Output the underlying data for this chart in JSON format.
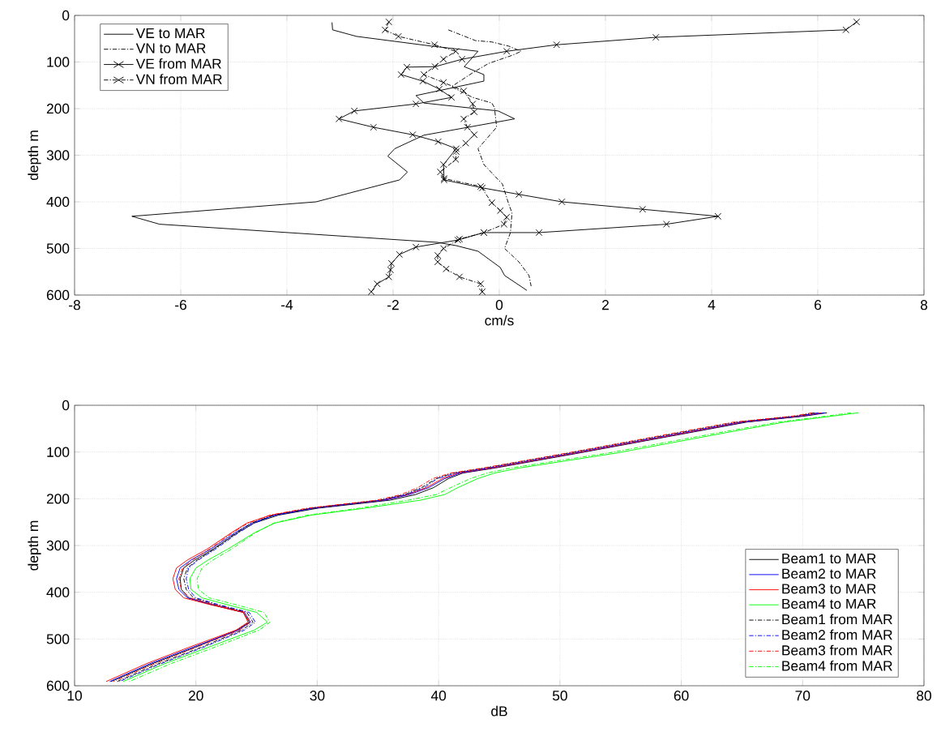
{
  "chart_data": [
    {
      "type": "line",
      "xlabel": "cm/s",
      "ylabel": "depth m",
      "xlim": [
        -8,
        8
      ],
      "ylim": [
        600,
        0
      ],
      "xticks": [
        -8,
        -6,
        -4,
        -2,
        0,
        2,
        4,
        6,
        8
      ],
      "yticks": [
        0,
        100,
        200,
        300,
        400,
        500,
        600
      ],
      "grid": true,
      "legend": "top left",
      "series": [
        {
          "name": "VE to MAR",
          "color": "#000000",
          "line_style": "solid",
          "marker": "none",
          "x": [
            -3.15,
            -3.14,
            -2.69,
            -1.27,
            -0.4,
            -0.66,
            -0.29,
            -0.29,
            -1.57,
            -1.42,
            -0.02,
            0.29,
            -1.42,
            -1.97,
            -2.1,
            -1.73,
            -1.88,
            -3.45,
            -6.92,
            -6.4,
            -1.16,
            -0.81,
            -0.4,
            0.02,
            0.1,
            0.52
          ],
          "values": [
            15,
            31,
            45,
            66,
            77,
            110,
            127,
            141,
            172,
            188,
            205,
            222,
            257,
            286,
            302,
            336,
            353,
            400,
            431,
            448,
            487,
            494,
            506,
            541,
            558,
            590
          ]
        },
        {
          "name": "VN to MAR",
          "color": "#000000",
          "line_style": "dashdot",
          "marker": "none",
          "x": [
            -0.96,
            -0.45,
            -0.14,
            0.18,
            0.41,
            0.26,
            -0.2,
            -0.5,
            -0.9,
            -0.5,
            -0.14,
            -0.09,
            -0.05,
            -0.4,
            -0.29,
            0.06,
            0.17,
            0.24,
            0.21,
            0.1,
            0.37,
            0.56,
            0.6
          ],
          "values": [
            31,
            54,
            57,
            66,
            77,
            85,
            103,
            123,
            153,
            176,
            188,
            198,
            240,
            286,
            320,
            362,
            402,
            424,
            466,
            500,
            529,
            558,
            581
          ]
        },
        {
          "name": "VE from MAR",
          "color": "#000000",
          "line_style": "solid",
          "marker": "cross",
          "x": [
            6.73,
            6.53,
            2.95,
            1.08,
            0.14,
            -0.7,
            -1.21,
            -1.74,
            -1.85,
            -1.44,
            -1.13,
            -0.9,
            -1.57,
            -2.73,
            -3.02,
            -2.37,
            -1.63,
            -1.15,
            -0.81,
            -1.05,
            -1.04,
            -0.32,
            0.37,
            1.18,
            2.7,
            4.12,
            3.15,
            0.75,
            -0.29,
            -0.78,
            -1.57,
            -1.88,
            -2.03,
            -2.05,
            -2.08,
            -2.3,
            -2.41
          ],
          "values": [
            14,
            31,
            47,
            63,
            77,
            94,
            110,
            111,
            127,
            141,
            158,
            176,
            190,
            205,
            222,
            240,
            256,
            271,
            286,
            320,
            353,
            370,
            384,
            400,
            416,
            431,
            448,
            466,
            466,
            482,
            497,
            513,
            532,
            546,
            561,
            576,
            593
          ]
        },
        {
          "name": "VN from MAR",
          "color": "#000000",
          "line_style": "dashdot",
          "marker": "cross",
          "x": [
            -2.08,
            -2.15,
            -1.9,
            -1.22,
            -0.82,
            -1.05,
            -1.42,
            -1.05,
            -0.67,
            -0.5,
            -0.47,
            -0.67,
            -0.6,
            -0.47,
            -0.63,
            -0.81,
            -0.82,
            -1.11,
            -1.04,
            -0.35,
            -0.14,
            0.02,
            0.14,
            0.09,
            -0.29,
            -0.75,
            -1.05,
            -1.16,
            -1.16,
            -1.0,
            -0.75,
            -0.35,
            -0.32
          ],
          "values": [
            14,
            31,
            45,
            63,
            77,
            94,
            127,
            144,
            162,
            190,
            207,
            222,
            240,
            256,
            274,
            292,
            309,
            336,
            350,
            367,
            402,
            419,
            433,
            448,
            466,
            480,
            500,
            515,
            529,
            544,
            561,
            576,
            593
          ]
        }
      ]
    },
    {
      "type": "line",
      "xlabel": "dB",
      "ylabel": "depth m",
      "xlim": [
        10,
        80
      ],
      "ylim": [
        600,
        0
      ],
      "xticks": [
        10,
        20,
        30,
        40,
        50,
        60,
        70,
        80
      ],
      "yticks": [
        0,
        100,
        200,
        300,
        400,
        500,
        600
      ],
      "grid": true,
      "legend": "bottom right",
      "series": [
        {
          "name": "Beam1 to MAR",
          "color": "#000000",
          "line_style": "solid",
          "x": [
            72.0,
            70.2,
            65.4,
            60.6,
            51.6,
            44.7,
            42.0,
            40.8,
            39.6,
            38.1,
            36.0,
            30.1,
            26.8,
            24.8,
            23.4,
            21.4,
            19.9,
            19.0,
            18.7,
            18.8,
            19.4,
            21.2,
            23.9,
            24.4,
            23.4,
            19.9,
            16.4,
            13.0
          ],
          "values": [
            16,
            23,
            36,
            59,
            102,
            134,
            145,
            157,
            176,
            191,
            203,
            220,
            235,
            252,
            273,
            308,
            331,
            348,
            371,
            394,
            412,
            426,
            443,
            464,
            481,
            518,
            553,
            591
          ]
        },
        {
          "name": "Beam2 to MAR",
          "color": "#0000ff",
          "line_style": "solid",
          "x": [
            71.8,
            70.0,
            65.2,
            60.4,
            51.4,
            44.5,
            41.8,
            40.5,
            39.2,
            37.6,
            35.6,
            29.8,
            26.5,
            24.6,
            23.2,
            21.2,
            19.6,
            18.7,
            18.4,
            18.6,
            19.3,
            21.3,
            24.0,
            24.5,
            23.5,
            19.7,
            16.2,
            12.9
          ],
          "values": [
            16,
            23,
            36,
            59,
            102,
            134,
            145,
            157,
            176,
            191,
            203,
            220,
            235,
            252,
            273,
            308,
            331,
            348,
            371,
            394,
            412,
            426,
            443,
            464,
            481,
            518,
            553,
            591
          ]
        },
        {
          "name": "Beam3 to MAR",
          "color": "#ff0000",
          "line_style": "solid",
          "x": [
            71.5,
            69.8,
            65.0,
            60.3,
            51.3,
            44.4,
            41.6,
            40.3,
            39.0,
            37.4,
            35.4,
            29.6,
            26.2,
            24.2,
            22.9,
            20.9,
            19.3,
            18.4,
            18.1,
            18.3,
            19.0,
            21.1,
            23.9,
            24.3,
            23.3,
            19.4,
            15.9,
            12.6
          ],
          "values": [
            16,
            23,
            36,
            59,
            102,
            134,
            145,
            157,
            176,
            191,
            203,
            220,
            235,
            252,
            273,
            308,
            331,
            348,
            371,
            394,
            412,
            426,
            443,
            464,
            481,
            518,
            553,
            591
          ]
        },
        {
          "name": "Beam4 to MAR",
          "color": "#00ff00",
          "line_style": "solid",
          "x": [
            74.6,
            72.5,
            68.5,
            63.6,
            54.7,
            46.7,
            44.6,
            43.2,
            41.6,
            40.5,
            38.5,
            34.0,
            29.5,
            26.5,
            24.8,
            22.6,
            21.0,
            20.0,
            19.5,
            19.6,
            20.5,
            22.5,
            25.0,
            25.9,
            24.8,
            21.0,
            17.4,
            14.0
          ],
          "values": [
            16,
            23,
            36,
            59,
            102,
            134,
            145,
            157,
            176,
            191,
            203,
            220,
            235,
            252,
            273,
            308,
            331,
            348,
            371,
            394,
            412,
            426,
            443,
            464,
            481,
            518,
            553,
            591
          ]
        },
        {
          "name": "Beam1 from MAR",
          "color": "#000000",
          "line_style": "dashdot",
          "x": [
            71.0,
            69.5,
            64.6,
            59.8,
            50.8,
            43.9,
            41.2,
            39.8,
            38.6,
            37.2,
            35.2,
            29.5,
            26.4,
            24.6,
            23.3,
            21.5,
            20.1,
            19.3,
            19.0,
            19.2,
            19.8,
            21.6,
            24.2,
            24.7,
            23.8,
            20.4,
            16.9,
            13.5
          ],
          "values": [
            16,
            23,
            36,
            59,
            102,
            134,
            145,
            157,
            176,
            191,
            203,
            220,
            235,
            252,
            273,
            308,
            331,
            348,
            371,
            394,
            412,
            426,
            443,
            464,
            481,
            518,
            553,
            591
          ]
        },
        {
          "name": "Beam2 from MAR",
          "color": "#0000ff",
          "line_style": "dashdot",
          "x": [
            71.3,
            69.6,
            64.8,
            60.0,
            51.0,
            44.1,
            41.4,
            39.9,
            38.8,
            37.3,
            35.3,
            29.6,
            26.5,
            24.8,
            23.5,
            21.6,
            20.2,
            19.4,
            19.2,
            19.4,
            20.0,
            21.8,
            24.4,
            24.9,
            24.0,
            20.6,
            17.1,
            13.7
          ],
          "values": [
            16,
            23,
            36,
            59,
            102,
            134,
            145,
            157,
            176,
            191,
            203,
            220,
            235,
            252,
            273,
            308,
            331,
            348,
            371,
            394,
            412,
            426,
            443,
            464,
            481,
            518,
            553,
            591
          ]
        },
        {
          "name": "Beam3 from MAR",
          "color": "#ff0000",
          "line_style": "dashdot",
          "x": [
            70.8,
            69.2,
            64.3,
            59.5,
            50.6,
            43.7,
            41.0,
            39.5,
            38.3,
            36.9,
            34.9,
            29.2,
            26.1,
            24.3,
            23.0,
            21.1,
            19.7,
            18.9,
            18.6,
            18.8,
            19.5,
            21.4,
            24.0,
            24.5,
            23.6,
            20.0,
            16.6,
            13.2
          ],
          "values": [
            16,
            23,
            36,
            59,
            102,
            134,
            145,
            157,
            176,
            191,
            203,
            220,
            235,
            252,
            273,
            308,
            331,
            348,
            371,
            394,
            412,
            426,
            443,
            464,
            481,
            518,
            553,
            591
          ]
        },
        {
          "name": "Beam4 from MAR",
          "color": "#00ff00",
          "line_style": "dashdot",
          "x": [
            74.0,
            72.0,
            68.0,
            63.0,
            54.0,
            46.0,
            44.0,
            42.6,
            41.0,
            39.8,
            37.5,
            33.5,
            29.2,
            26.4,
            24.9,
            22.9,
            21.4,
            20.5,
            20.1,
            20.2,
            21.1,
            23.2,
            25.6,
            26.1,
            25.2,
            21.5,
            17.9,
            14.5
          ],
          "values": [
            16,
            23,
            36,
            59,
            102,
            134,
            145,
            157,
            176,
            191,
            203,
            220,
            235,
            252,
            273,
            308,
            331,
            348,
            371,
            394,
            412,
            426,
            443,
            464,
            481,
            518,
            553,
            591
          ]
        }
      ]
    }
  ]
}
